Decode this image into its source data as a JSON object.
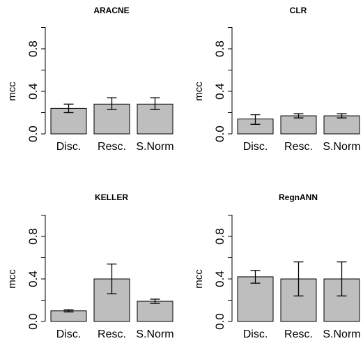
{
  "chart_data": [
    {
      "type": "bar",
      "title": "ARACNE",
      "ylabel": "mcc",
      "ylim": [
        0,
        1
      ],
      "yticks": [
        "0.0",
        "0.4",
        "0.8"
      ],
      "categories": [
        "Disc.",
        "Resc.",
        "S.Norm"
      ],
      "values": [
        0.24,
        0.28,
        0.28
      ],
      "error_low": [
        0.2,
        0.23,
        0.23
      ],
      "error_high": [
        0.28,
        0.34,
        0.34
      ],
      "bar_color": "#bebebe"
    },
    {
      "type": "bar",
      "title": "CLR",
      "ylabel": "mcc",
      "ylim": [
        0,
        1
      ],
      "yticks": [
        "0.0",
        "0.4",
        "0.8"
      ],
      "categories": [
        "Disc.",
        "Resc.",
        "S.Norm"
      ],
      "values": [
        0.14,
        0.17,
        0.17
      ],
      "error_low": [
        0.09,
        0.15,
        0.15
      ],
      "error_high": [
        0.18,
        0.19,
        0.19
      ],
      "bar_color": "#bebebe"
    },
    {
      "type": "bar",
      "title": "KELLER",
      "ylabel": "mcc",
      "ylim": [
        0,
        1
      ],
      "yticks": [
        "0.0",
        "0.4",
        "0.8"
      ],
      "categories": [
        "Disc.",
        "Resc.",
        "S.Norm"
      ],
      "values": [
        0.1,
        0.4,
        0.19
      ],
      "error_low": [
        0.09,
        0.26,
        0.17
      ],
      "error_high": [
        0.11,
        0.54,
        0.21
      ],
      "bar_color": "#bebebe"
    },
    {
      "type": "bar",
      "title": "RegnANN",
      "ylabel": "mcc",
      "ylim": [
        0,
        1
      ],
      "yticks": [
        "0.0",
        "0.4",
        "0.8"
      ],
      "categories": [
        "Disc.",
        "Resc.",
        "S.Norm"
      ],
      "values": [
        0.42,
        0.4,
        0.4
      ],
      "error_low": [
        0.36,
        0.24,
        0.24
      ],
      "error_high": [
        0.48,
        0.56,
        0.56
      ],
      "bar_color": "#bebebe"
    }
  ]
}
